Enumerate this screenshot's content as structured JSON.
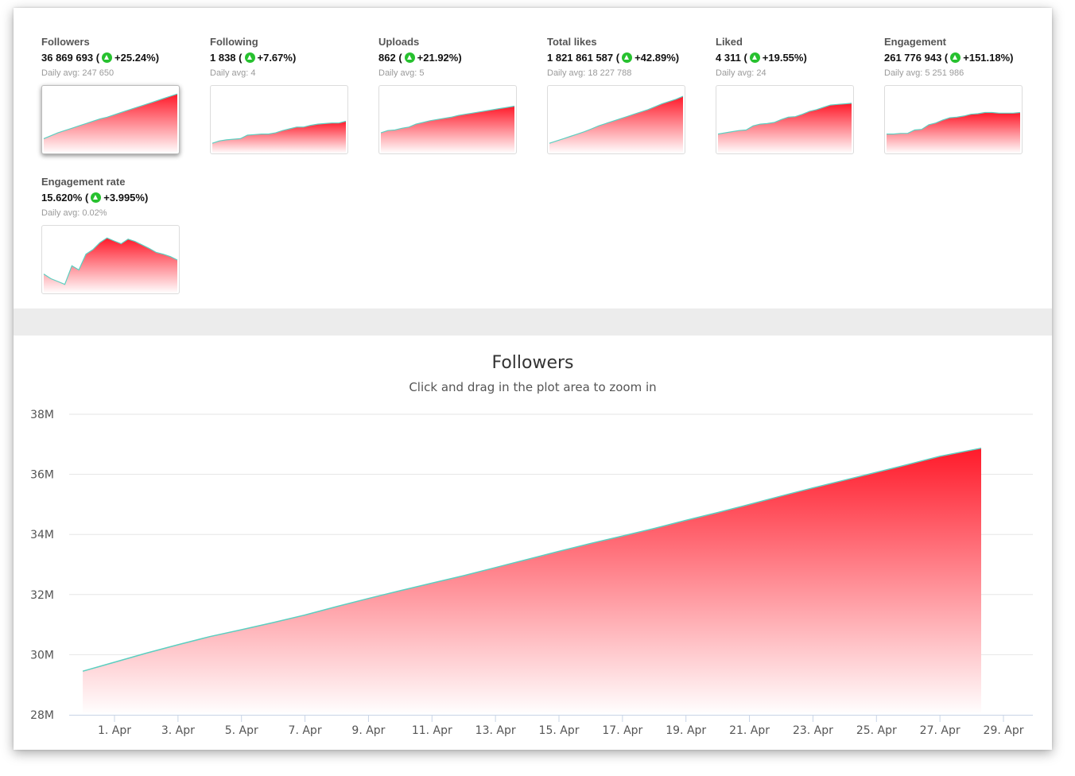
{
  "stats": [
    {
      "label": "Followers",
      "value": "36 869 693",
      "change": "+25.24%",
      "avg": "Daily avg: 247 650",
      "active": true,
      "spark": [
        0.2,
        0.25,
        0.3,
        0.34,
        0.38,
        0.42,
        0.46,
        0.5,
        0.54,
        0.57,
        0.61,
        0.65,
        0.69,
        0.73,
        0.77,
        0.81,
        0.85,
        0.89,
        0.93,
        0.97
      ]
    },
    {
      "label": "Following",
      "value": "1 838",
      "change": "+7.67%",
      "avg": "Daily avg: 4",
      "active": false,
      "spark": [
        0.12,
        0.16,
        0.18,
        0.19,
        0.2,
        0.26,
        0.27,
        0.28,
        0.28,
        0.3,
        0.34,
        0.37,
        0.4,
        0.4,
        0.43,
        0.45,
        0.46,
        0.47,
        0.47,
        0.5
      ]
    },
    {
      "label": "Uploads",
      "value": "862",
      "change": "+21.92%",
      "avg": "Daily avg: 5",
      "active": false,
      "spark": [
        0.3,
        0.34,
        0.35,
        0.38,
        0.4,
        0.45,
        0.48,
        0.51,
        0.53,
        0.55,
        0.57,
        0.6,
        0.62,
        0.64,
        0.66,
        0.68,
        0.7,
        0.72,
        0.74,
        0.76
      ]
    },
    {
      "label": "Total likes",
      "value": "1 821 861 587",
      "change": "+42.89%",
      "avg": "Daily avg: 18 227 788",
      "active": false,
      "spark": [
        0.12,
        0.16,
        0.2,
        0.24,
        0.28,
        0.32,
        0.37,
        0.42,
        0.46,
        0.5,
        0.54,
        0.58,
        0.62,
        0.66,
        0.7,
        0.75,
        0.8,
        0.84,
        0.88,
        0.93
      ]
    },
    {
      "label": "Liked",
      "value": "4 311",
      "change": "+19.55%",
      "avg": "Daily avg: 24",
      "active": false,
      "spark": [
        0.28,
        0.3,
        0.32,
        0.34,
        0.35,
        0.42,
        0.45,
        0.46,
        0.48,
        0.53,
        0.57,
        0.58,
        0.62,
        0.67,
        0.7,
        0.74,
        0.78,
        0.79,
        0.8,
        0.81
      ]
    },
    {
      "label": "Engagement",
      "value": "261 776 943",
      "change": "+151.18%",
      "avg": "Daily avg: 5 251 986",
      "active": false,
      "spark": [
        0.28,
        0.28,
        0.29,
        0.29,
        0.35,
        0.36,
        0.44,
        0.47,
        0.52,
        0.56,
        0.57,
        0.59,
        0.62,
        0.63,
        0.65,
        0.65,
        0.64,
        0.64,
        0.64,
        0.65
      ]
    },
    {
      "label": "Engagement rate",
      "value": "15.620%",
      "change": "+3.995%",
      "avg": "Daily avg: 0.02%",
      "active": false,
      "spark": [
        0.28,
        0.2,
        0.15,
        0.1,
        0.42,
        0.35,
        0.62,
        0.7,
        0.82,
        0.9,
        0.85,
        0.8,
        0.88,
        0.84,
        0.78,
        0.72,
        0.65,
        0.62,
        0.58,
        0.52
      ]
    }
  ],
  "chart_data": {
    "type": "area",
    "title": "Followers",
    "subtitle": "Click and drag in the plot area to zoom in",
    "xlabel": "",
    "ylabel": "",
    "x_tick_labels": [
      "1. Apr",
      "3. Apr",
      "5. Apr",
      "7. Apr",
      "9. Apr",
      "11. Apr",
      "13. Apr",
      "15. Apr",
      "17. Apr",
      "19. Apr",
      "21. Apr",
      "23. Apr",
      "25. Apr",
      "27. Apr",
      "29. Apr"
    ],
    "y_tick_labels": [
      "28M",
      "30M",
      "32M",
      "34M",
      "36M",
      "38M"
    ],
    "ylim": [
      28000000,
      38000000
    ],
    "y_ticks": [
      28000000,
      30000000,
      32000000,
      34000000,
      36000000,
      38000000
    ],
    "x_start_day": 31,
    "x_end_day": 60,
    "series": [
      {
        "name": "",
        "values": [
          29450000,
          29750000,
          30050000,
          30330000,
          30600000,
          30830000,
          31070000,
          31320000,
          31600000,
          31870000,
          32130000,
          32380000,
          32630000,
          32900000,
          33170000,
          33440000,
          33700000,
          33950000,
          34200000,
          34470000,
          34730000,
          35000000,
          35280000,
          35550000,
          35810000,
          36070000,
          36330000,
          36600000,
          36870000
        ]
      }
    ],
    "x_values_day": [
      31,
      32,
      33,
      34,
      35,
      36,
      37,
      38,
      39,
      40,
      41,
      42,
      43,
      44,
      45,
      46,
      47,
      48,
      49,
      50,
      51,
      52,
      53,
      54,
      55,
      56,
      57,
      58,
      59.3
    ],
    "grid": true,
    "fill_color_top": "#ff1a2a",
    "fill_color_bottom": "#ffffff",
    "line_color": "#5ccfc0"
  }
}
